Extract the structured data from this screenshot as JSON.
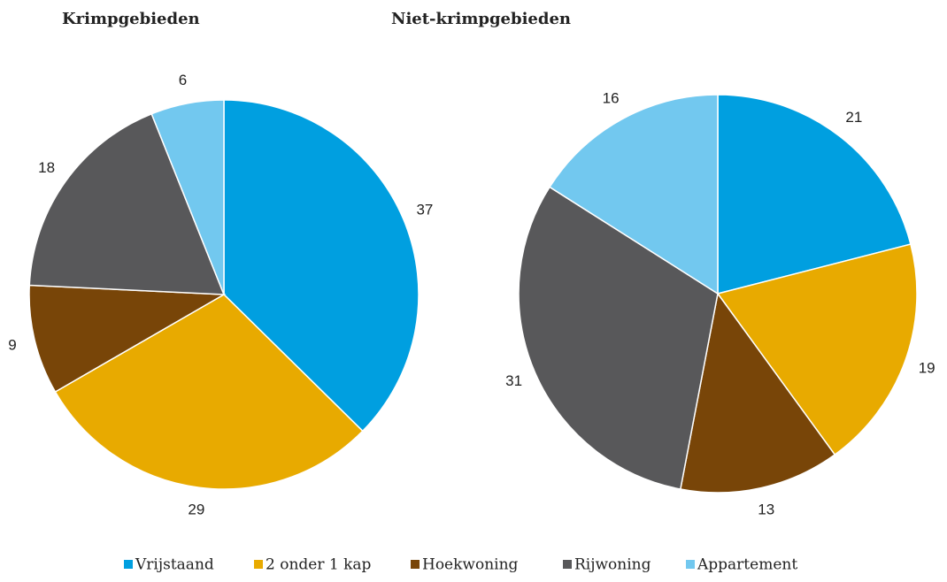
{
  "legend": {
    "labels": [
      "Vrijstaand",
      "2 onder 1 kap",
      "Hoekwoning",
      "Rijwoning",
      "Appartement"
    ],
    "colors": [
      "#009fe0",
      "#e8aa00",
      "#784508",
      "#58585a",
      "#72c8ef"
    ]
  },
  "chart_data": [
    {
      "type": "pie",
      "title": "Krimpgebieden",
      "values": [
        37,
        29,
        9,
        18,
        6
      ]
    },
    {
      "type": "pie",
      "title": "Niet-krimpgebieden",
      "values": [
        21,
        19,
        13,
        31,
        16
      ]
    }
  ]
}
